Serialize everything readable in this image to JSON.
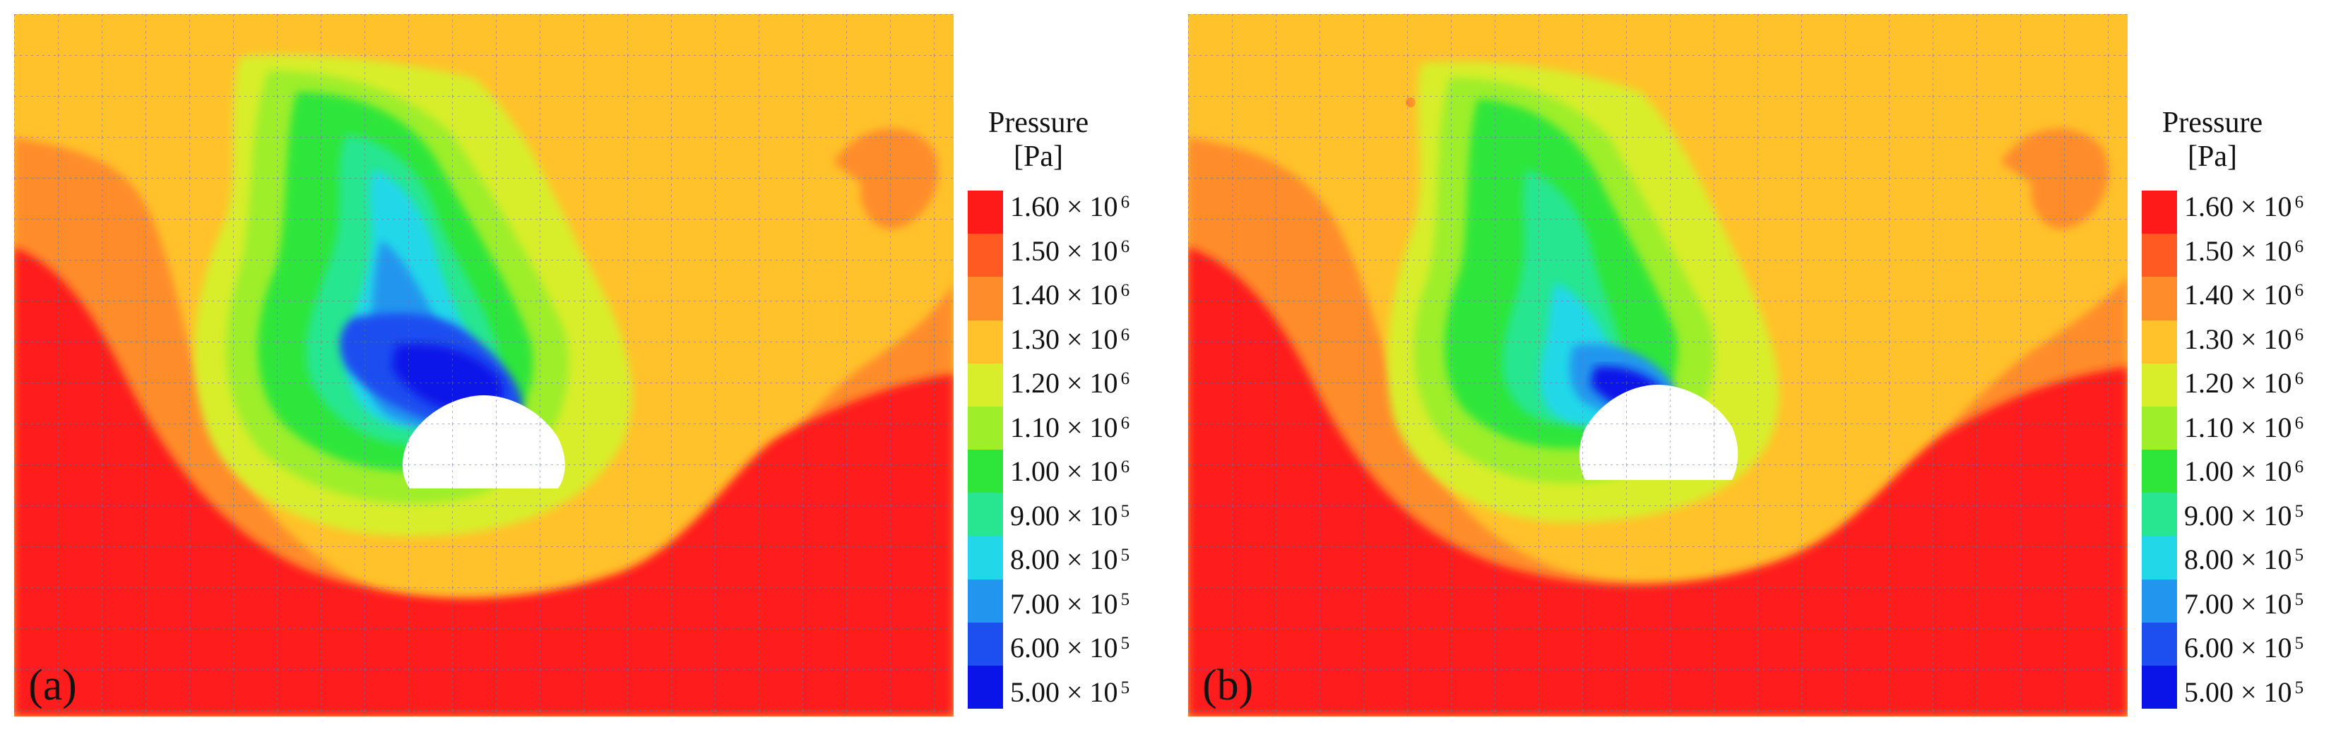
{
  "legend": {
    "title_line1": "Pressure",
    "title_line2": "[Pa]",
    "ticks": [
      {
        "mantissa": "1.60 × 10",
        "exponent": "6"
      },
      {
        "mantissa": "1.50 × 10",
        "exponent": "6"
      },
      {
        "mantissa": "1.40 × 10",
        "exponent": "6"
      },
      {
        "mantissa": "1.30 × 10",
        "exponent": "6"
      },
      {
        "mantissa": "1.20 × 10",
        "exponent": "6"
      },
      {
        "mantissa": "1.10 × 10",
        "exponent": "6"
      },
      {
        "mantissa": "1.00 × 10",
        "exponent": "6"
      },
      {
        "mantissa": "9.00 × 10",
        "exponent": "5"
      },
      {
        "mantissa": "8.00 × 10",
        "exponent": "5"
      },
      {
        "mantissa": "7.00 × 10",
        "exponent": "5"
      },
      {
        "mantissa": "6.00 × 10",
        "exponent": "5"
      },
      {
        "mantissa": "5.00 × 10",
        "exponent": "5"
      }
    ],
    "colors": [
      "#ff1a1a",
      "#ff5a22",
      "#ff8c2a",
      "#ffc22a",
      "#d8ee2a",
      "#9eee2a",
      "#2ee63a",
      "#28e690",
      "#22d8e8",
      "#2296ee",
      "#1d4ef0",
      "#0a14e8"
    ]
  },
  "panels": [
    {
      "label": "(a)"
    },
    {
      "label": "(b)"
    }
  ]
}
